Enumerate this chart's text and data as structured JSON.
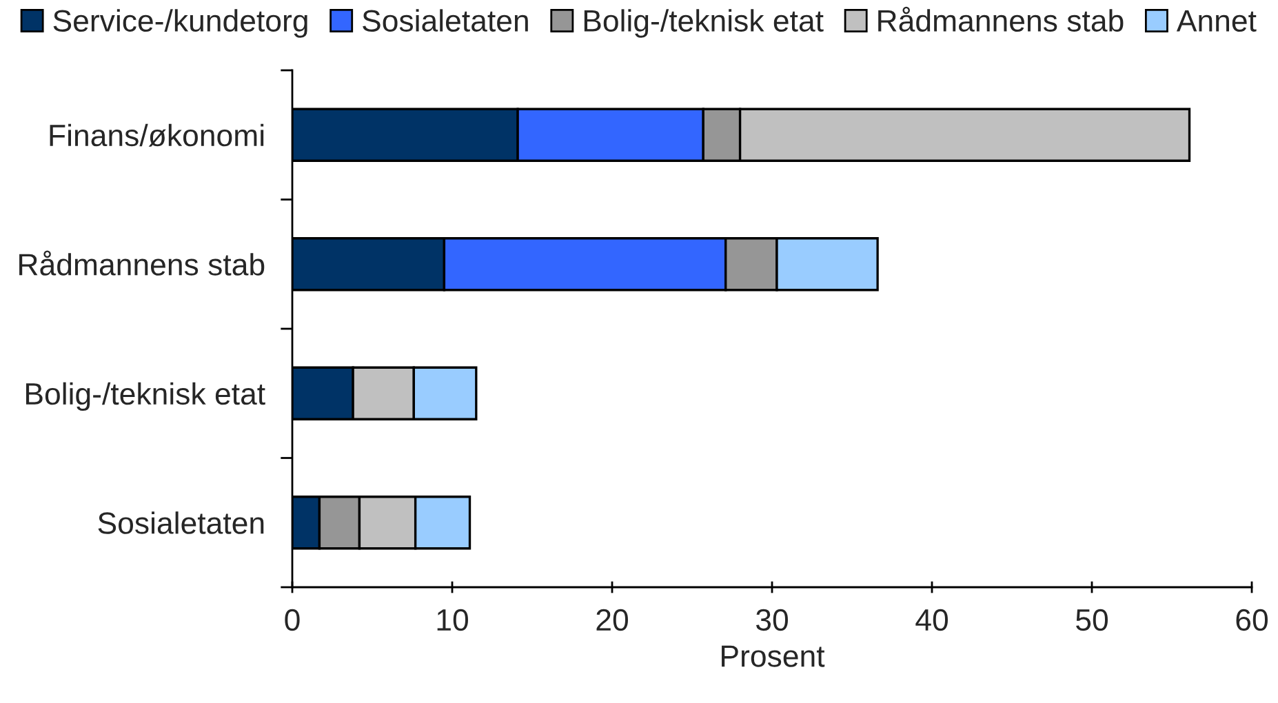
{
  "chart_data": {
    "type": "bar",
    "orientation": "horizontal",
    "stacked": true,
    "xlabel": "Prosent",
    "categories": [
      "Finans/økonomi",
      "Rådmannens stab",
      "Bolig-/teknisk etat",
      "Sosialetaten"
    ],
    "series": [
      {
        "name": "Service-/kundetorg",
        "color": "#003366",
        "values": [
          14.1,
          9.5,
          3.8,
          1.7
        ]
      },
      {
        "name": "Sosialetaten",
        "color": "#3366ff",
        "values": [
          11.6,
          17.6,
          null,
          null
        ]
      },
      {
        "name": "Bolig-/teknisk etat",
        "color": "#969696",
        "values": [
          2.3,
          3.2,
          null,
          2.5
        ]
      },
      {
        "name": "Rådmannens stab",
        "color": "#c0c0c0",
        "values": [
          28.1,
          null,
          3.8,
          3.5
        ]
      },
      {
        "name": "Annet",
        "color": "#99ccff",
        "values": [
          null,
          6.3,
          3.9,
          3.4
        ]
      }
    ],
    "xlim": [
      0,
      60
    ],
    "xticks": [
      0,
      10,
      20,
      30,
      40,
      50,
      60
    ],
    "legend": "top",
    "grid": false
  }
}
